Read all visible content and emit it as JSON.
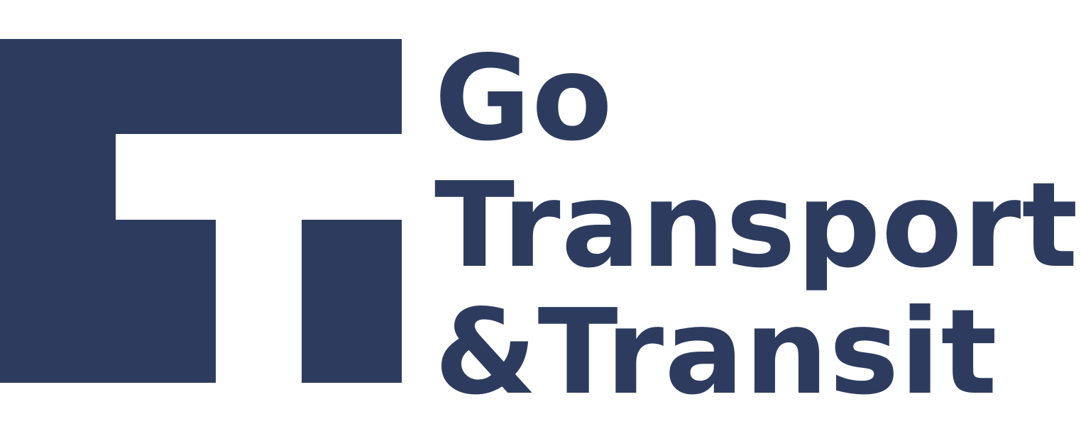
{
  "brand": {
    "color": "#2d3c5e",
    "icon": "tt-monogram-icon",
    "lines": [
      "Go",
      "Transport",
      "&Transit"
    ]
  }
}
